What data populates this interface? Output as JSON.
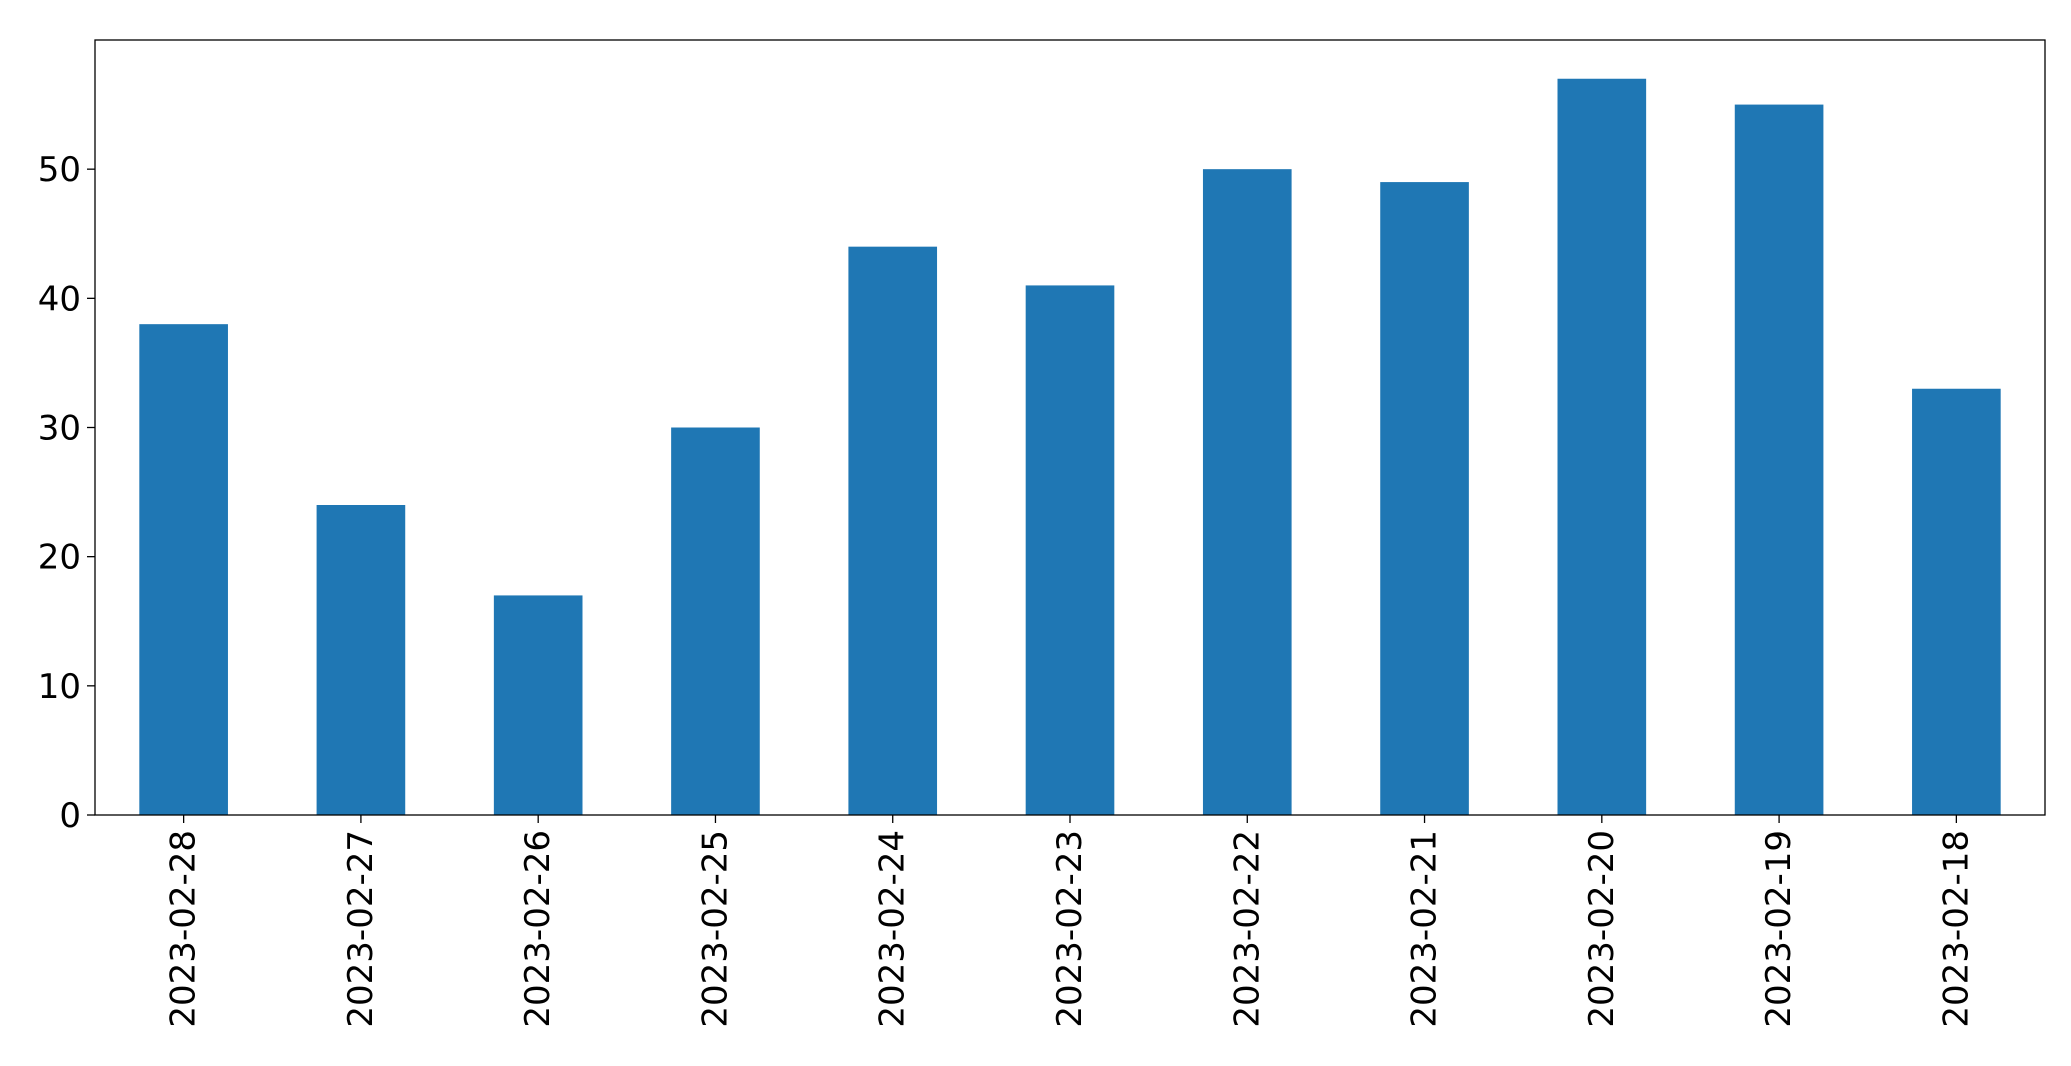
{
  "chart_data": {
    "type": "bar",
    "title": "",
    "xlabel": "",
    "ylabel": "",
    "categories": [
      "2023-02-28",
      "2023-02-27",
      "2023-02-26",
      "2023-02-25",
      "2023-02-24",
      "2023-02-23",
      "2023-02-22",
      "2023-02-21",
      "2023-02-20",
      "2023-02-19",
      "2023-02-18"
    ],
    "values": [
      38,
      24,
      17,
      30,
      44,
      41,
      50,
      49,
      57,
      55,
      33
    ],
    "ylim": [
      0,
      60
    ],
    "yticks": [
      0,
      10,
      20,
      30,
      40,
      50
    ],
    "bar_color": "#1f77b4",
    "grid": false,
    "legend": "none"
  }
}
